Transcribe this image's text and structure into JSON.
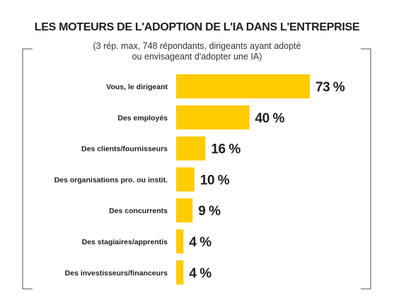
{
  "chart_data": {
    "type": "bar",
    "orientation": "horizontal",
    "title": "LES MOTEURS DE L'ADOPTION DE L'IA DANS L'ENTREPRISE",
    "subtitle_lines": [
      "(3 rép. max, 748 répondants, dirigeants ayant adopté",
      "ou envisageant d'adopter une IA)"
    ],
    "categories": [
      "Vous, le dirigeant",
      "Des employés",
      "Des clients/fournisseurs",
      "Des organisations pro. ou instit.",
      "Des concurrents",
      "Des stagiaires/apprentis",
      "Des investisseurs/financeurs"
    ],
    "values": [
      73,
      40,
      16,
      10,
      9,
      4,
      4
    ],
    "value_labels": [
      "73 %",
      "40 %",
      "16 %",
      "10 %",
      "9 %",
      "4 %",
      "4 %"
    ],
    "xlim": [
      0,
      73
    ],
    "bar_color": "#FFCC00",
    "grid": false,
    "legend": "none"
  }
}
